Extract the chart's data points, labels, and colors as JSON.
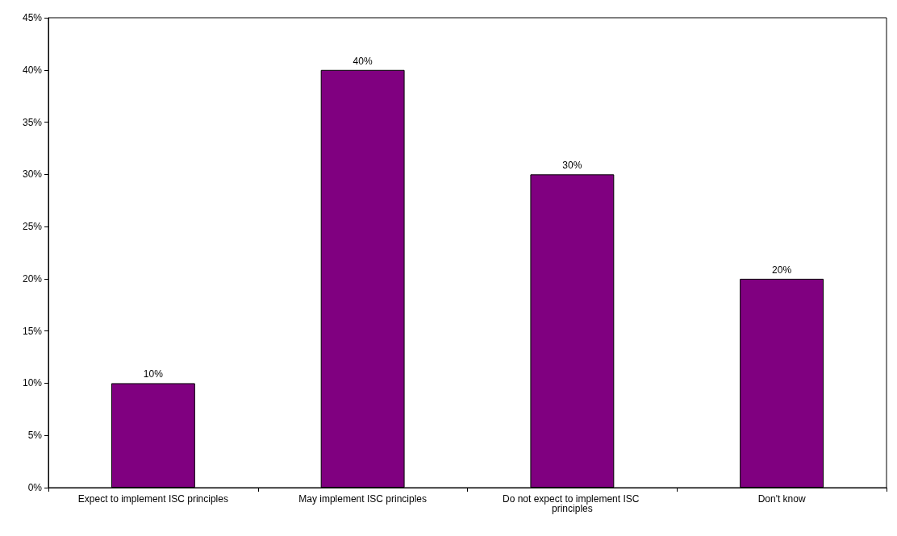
{
  "chart_data": {
    "type": "bar",
    "categories": [
      "Expect to implement ISC principles",
      "May implement ISC principles",
      "Do not expect to implement ISC principles",
      "Don't know"
    ],
    "values": [
      10,
      40,
      30,
      20
    ],
    "value_labels": [
      "10%",
      "40%",
      "30%",
      "20%"
    ],
    "color": "#800080",
    "ylim": [
      0,
      45
    ],
    "yticks": [
      {
        "value": 0,
        "label": "0%"
      },
      {
        "value": 5,
        "label": "5%"
      },
      {
        "value": 10,
        "label": "10%"
      },
      {
        "value": 15,
        "label": "15%"
      },
      {
        "value": 20,
        "label": "20%"
      },
      {
        "value": 25,
        "label": "25%"
      },
      {
        "value": 30,
        "label": "30%"
      },
      {
        "value": 35,
        "label": "35%"
      },
      {
        "value": 40,
        "label": "40%"
      },
      {
        "value": 45,
        "label": "45%"
      }
    ],
    "grid": false
  }
}
